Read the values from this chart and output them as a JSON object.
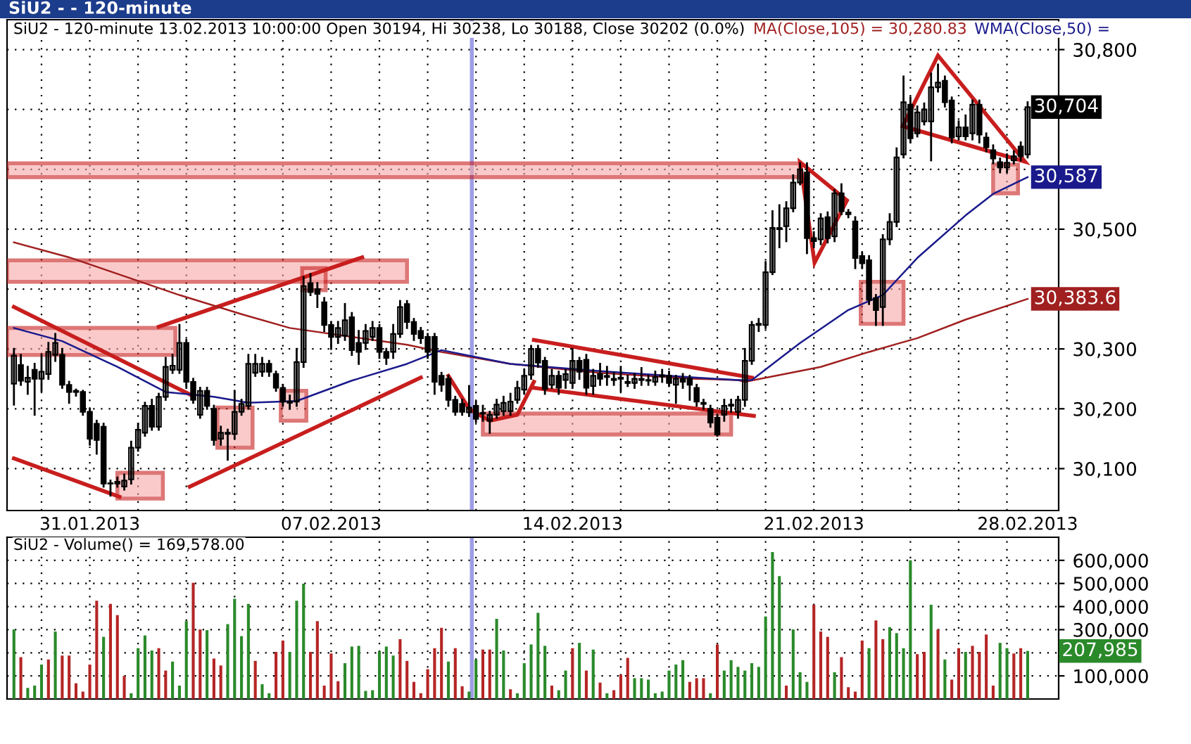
{
  "chart_data": [
    {
      "type": "candlestick",
      "subtitle": "SiU2 - - 120-minute",
      "title": "SiU2 - 120-minute 13.02.2013 10:00:00 Open 30194, Hi 30238, Lo 30188, Close 30202 (0.0%)",
      "color": "#000000",
      "categories": [
        null,
        null,
        null,
        null,
        null,
        null,
        null,
        null,
        null,
        null,
        null,
        "31.01.2013",
        null,
        null,
        null,
        null,
        null,
        null,
        null,
        null,
        null,
        null,
        null,
        null,
        null,
        null,
        null,
        null,
        null,
        null,
        null,
        null,
        null,
        null,
        null,
        null,
        null,
        null,
        null,
        null,
        null,
        null,
        null,
        null,
        null,
        null,
        "07.02.2013",
        null,
        null,
        null,
        null,
        null,
        null,
        null,
        null,
        null,
        null,
        null,
        null,
        null,
        null,
        null,
        null,
        null,
        null,
        null,
        null,
        null,
        null,
        null,
        null,
        null,
        null,
        null,
        null,
        null,
        null,
        null,
        null,
        null,
        null,
        "14.02.2013",
        null,
        null,
        null,
        null,
        null,
        null,
        null,
        null,
        null,
        null,
        null,
        null,
        null,
        null,
        null,
        null,
        null,
        null,
        null,
        null,
        null,
        null,
        null,
        null,
        null,
        null,
        null,
        null,
        null,
        null,
        null,
        null,
        null,
        null,
        "21.02.2013",
        null,
        null,
        null,
        null,
        null,
        null,
        null,
        null,
        null,
        null,
        null,
        null,
        null,
        null,
        null,
        null,
        null,
        null,
        null,
        null,
        null,
        null,
        null,
        null,
        null,
        null,
        null,
        null,
        null,
        null,
        "28.02.2013"
      ],
      "ohlc": [
        [
          30242,
          30300,
          30207,
          30289
        ],
        [
          30273,
          30290,
          30240,
          30247
        ],
        [
          30245,
          30270,
          30225,
          30252
        ],
        [
          30265,
          30275,
          30190,
          30250
        ],
        [
          30250,
          30290,
          30230,
          30262
        ],
        [
          30258,
          30310,
          30250,
          30295
        ],
        [
          30290,
          30325,
          30280,
          30310
        ],
        [
          30290,
          30300,
          30235,
          30240
        ],
        [
          30240,
          30245,
          30210,
          30228
        ],
        [
          30230,
          30232,
          30222,
          30228
        ],
        [
          30228,
          30230,
          30190,
          30195
        ],
        [
          30195,
          30200,
          30140,
          30150
        ],
        [
          30175,
          30180,
          30125,
          30148
        ],
        [
          30170,
          30175,
          30070,
          30075
        ],
        [
          30075,
          30080,
          30055,
          30075
        ],
        [
          30075,
          30085,
          30070,
          30078
        ],
        [
          30070,
          30090,
          30065,
          30080
        ],
        [
          30082,
          30145,
          30075,
          30135
        ],
        [
          30135,
          30175,
          30130,
          30165
        ],
        [
          30160,
          30210,
          30155,
          30205
        ],
        [
          30205,
          30215,
          30165,
          30170
        ],
        [
          30170,
          30225,
          30165,
          30220
        ],
        [
          30220,
          30285,
          30215,
          30270
        ],
        [
          30265,
          30290,
          30260,
          30272
        ],
        [
          30265,
          30340,
          30260,
          30310
        ],
        [
          30310,
          30315,
          30235,
          30245
        ],
        [
          30245,
          30250,
          30210,
          30215
        ],
        [
          30190,
          30235,
          30185,
          30230
        ],
        [
          30230,
          30235,
          30200,
          30205
        ],
        [
          30200,
          30205,
          30140,
          30148
        ],
        [
          30150,
          30170,
          30140,
          30160
        ],
        [
          30158,
          30165,
          30115,
          30160
        ],
        [
          30158,
          30230,
          30150,
          30195
        ],
        [
          30195,
          30215,
          30190,
          30208
        ],
        [
          30205,
          30290,
          30200,
          30275
        ],
        [
          30260,
          30290,
          30255,
          30275
        ],
        [
          30262,
          30285,
          30255,
          30275
        ],
        [
          30275,
          30280,
          30255,
          30262
        ],
        [
          30258,
          30262,
          30230,
          30235
        ],
        [
          30235,
          30240,
          30205,
          30212
        ],
        [
          30210,
          30222,
          30200,
          30212
        ],
        [
          30212,
          30300,
          30205,
          30278
        ],
        [
          30278,
          30420,
          30270,
          30405
        ],
        [
          30410,
          30425,
          30390,
          30395
        ],
        [
          30400,
          30410,
          30370,
          30392
        ],
        [
          30378,
          30385,
          30330,
          30340
        ],
        [
          30340,
          30345,
          30300,
          30320
        ],
        [
          30320,
          30345,
          30310,
          30335
        ],
        [
          30322,
          30375,
          30315,
          30348
        ],
        [
          30353,
          30360,
          30290,
          30298
        ],
        [
          30310,
          30330,
          30275,
          30295
        ],
        [
          30310,
          30340,
          30300,
          30330
        ],
        [
          30320,
          30345,
          30315,
          30335
        ],
        [
          30335,
          30340,
          30285,
          30295
        ],
        [
          30295,
          30300,
          30275,
          30285
        ],
        [
          30295,
          30340,
          30285,
          30325
        ],
        [
          30325,
          30380,
          30320,
          30370
        ],
        [
          30375,
          30380,
          30335,
          30345
        ],
        [
          30345,
          30350,
          30315,
          30325
        ],
        [
          30330,
          30335,
          30310,
          30318
        ],
        [
          30320,
          30325,
          30285,
          30295
        ],
        [
          30320,
          30325,
          30225,
          30245
        ],
        [
          30255,
          30260,
          30230,
          30240
        ],
        [
          30250,
          30255,
          30205,
          30215
        ],
        [
          30215,
          30220,
          30190,
          30195
        ],
        [
          30208,
          30215,
          30190,
          30195
        ],
        [
          30194,
          30238,
          30188,
          30202
        ],
        [
          30205,
          30212,
          30178,
          30183
        ],
        [
          30192,
          30205,
          30180,
          30193
        ],
        [
          30180,
          30195,
          30160,
          30190
        ],
        [
          30190,
          30215,
          30185,
          30207
        ],
        [
          30196,
          30220,
          30190,
          30210
        ],
        [
          30196,
          30225,
          30190,
          30212
        ],
        [
          30215,
          30245,
          30210,
          30235
        ],
        [
          30232,
          30265,
          30225,
          30255
        ],
        [
          30257,
          30305,
          30250,
          30300
        ],
        [
          30300,
          30305,
          30270,
          30277
        ],
        [
          30280,
          30285,
          30225,
          30233
        ],
        [
          30240,
          30265,
          30235,
          30255
        ],
        [
          30255,
          30262,
          30225,
          30235
        ],
        [
          30248,
          30265,
          30235,
          30258
        ],
        [
          30243,
          30300,
          30235,
          30280
        ],
        [
          30280,
          30285,
          30250,
          30262
        ],
        [
          30282,
          30290,
          30225,
          30235
        ],
        [
          30238,
          30265,
          30225,
          30255
        ],
        [
          30258,
          30275,
          30240,
          30250
        ],
        [
          30255,
          30270,
          30240,
          30253
        ],
        [
          30250,
          30260,
          30240,
          30248
        ],
        [
          30250,
          30270,
          30230,
          30252
        ],
        [
          30245,
          30255,
          30238,
          30243
        ],
        [
          30243,
          30258,
          30235,
          30250
        ],
        [
          30248,
          30268,
          30240,
          30250
        ],
        [
          30248,
          30255,
          30240,
          30247
        ],
        [
          30245,
          30262,
          30240,
          30253
        ],
        [
          30254,
          30265,
          30245,
          30256
        ],
        [
          30255,
          30262,
          30238,
          30243
        ],
        [
          30240,
          30255,
          30210,
          30250
        ],
        [
          30250,
          30258,
          30235,
          30245
        ],
        [
          30250,
          30255,
          30215,
          30240
        ],
        [
          30235,
          30240,
          30205,
          30212
        ],
        [
          30210,
          30215,
          30200,
          30208
        ],
        [
          30200,
          30205,
          30170,
          30177
        ],
        [
          30185,
          30190,
          30155,
          30157
        ],
        [
          30190,
          30215,
          30180,
          30205
        ],
        [
          30205,
          30215,
          30195,
          30207
        ],
        [
          30195,
          30220,
          30185,
          30215
        ],
        [
          30215,
          30300,
          30205,
          30280
        ],
        [
          30280,
          30345,
          30275,
          30340
        ],
        [
          30340,
          30350,
          30330,
          30342
        ],
        [
          30340,
          30445,
          30335,
          30428
        ],
        [
          30428,
          30530,
          30425,
          30502
        ],
        [
          30500,
          30540,
          30470,
          30502
        ],
        [
          30505,
          30545,
          30480,
          30535
        ],
        [
          30535,
          30590,
          30530,
          30578
        ],
        [
          30578,
          30610,
          30575,
          30600
        ],
        [
          30595,
          30610,
          30460,
          30485
        ],
        [
          30485,
          30495,
          30470,
          30480
        ],
        [
          30483,
          30525,
          30475,
          30518
        ],
        [
          30520,
          30528,
          30478,
          30485
        ],
        [
          30488,
          30565,
          30480,
          30560
        ],
        [
          30560,
          30575,
          30525,
          30530
        ],
        [
          30528,
          30532,
          30520,
          30525
        ],
        [
          30513,
          30520,
          30435,
          30452
        ],
        [
          30455,
          30460,
          30435,
          30443
        ],
        [
          30448,
          30455,
          30375,
          30382
        ],
        [
          30385,
          30390,
          30340,
          30365
        ],
        [
          30370,
          30490,
          30340,
          30483
        ],
        [
          30483,
          30525,
          30475,
          30512
        ],
        [
          30512,
          30635,
          30505,
          30620
        ],
        [
          30625,
          30755,
          30620,
          30712
        ],
        [
          30708,
          30720,
          30645,
          30652
        ],
        [
          30660,
          30705,
          30655,
          30695
        ],
        [
          30680,
          30710,
          30675,
          30700
        ],
        [
          30680,
          30760,
          30615,
          30737
        ],
        [
          30737,
          30775,
          30730,
          30745
        ],
        [
          30748,
          30755,
          30705,
          30712
        ],
        [
          30715,
          30720,
          30645,
          30653
        ],
        [
          30655,
          30680,
          30650,
          30670
        ],
        [
          30670,
          30690,
          30650,
          30655
        ],
        [
          30660,
          30715,
          30650,
          30708
        ],
        [
          30708,
          30715,
          30645,
          30658
        ],
        [
          30653,
          30660,
          30630,
          30637
        ],
        [
          30632,
          30640,
          30610,
          30618
        ],
        [
          30612,
          30618,
          30595,
          30603
        ],
        [
          30603,
          30625,
          30595,
          30611
        ],
        [
          30615,
          30630,
          30610,
          30622
        ],
        [
          30638,
          30645,
          30615,
          30622
        ],
        [
          30625,
          30712,
          30620,
          30704
        ]
      ],
      "value_labels": [
        null,
        null,
        null,
        null,
        null,
        null,
        null,
        null,
        null,
        null,
        null,
        null,
        null,
        null,
        null,
        null,
        null,
        null,
        null,
        null,
        null,
        null,
        null,
        null,
        null,
        null,
        null,
        null,
        null,
        null,
        null,
        null,
        null,
        null,
        null,
        null,
        null,
        null,
        null,
        null,
        null,
        null,
        null,
        null,
        null,
        null,
        null,
        null,
        null,
        null,
        null,
        null,
        null,
        null,
        null,
        null,
        null,
        null,
        null,
        null,
        null,
        null,
        null,
        null,
        null,
        null,
        null,
        null,
        null,
        null,
        null,
        null,
        null,
        null,
        null,
        null,
        null,
        null,
        null,
        null,
        null,
        null,
        null,
        null,
        null,
        null,
        null,
        null,
        null,
        null,
        null,
        null,
        null,
        null,
        null,
        null,
        null,
        null,
        null,
        null,
        null,
        null,
        null,
        null,
        null,
        null,
        null,
        null,
        null,
        null,
        null,
        null,
        null,
        null,
        null,
        null,
        null,
        null,
        null,
        null,
        null,
        null,
        null,
        null,
        null,
        null,
        null,
        null,
        null,
        null,
        null,
        null,
        null,
        null,
        null,
        null,
        null,
        null,
        null,
        null,
        null,
        null,
        null,
        null,
        null,
        null,
        null,
        "30,704"
      ],
      "series": [
        {
          "type": "line",
          "name": "MA(Close,105) = 30,280.83",
          "color": "#a02020",
          "values": [
            30478,
            null,
            null,
            null,
            null,
            null,
            null,
            null,
            30453,
            null,
            null,
            null,
            null,
            null,
            null,
            null,
            null,
            null,
            null,
            null,
            null,
            null,
            null,
            null,
            30390,
            null,
            null,
            null,
            null,
            null,
            null,
            null,
            null,
            30358,
            null,
            null,
            null,
            null,
            null,
            null,
            30335,
            null,
            null,
            null,
            null,
            null,
            null,
            null,
            null,
            null,
            null,
            null,
            null,
            null,
            null,
            null,
            null,
            30307,
            null,
            null,
            null,
            null,
            30295,
            null,
            null,
            null,
            null,
            null,
            null,
            null,
            null,
            null,
            30275,
            null,
            null,
            null,
            null,
            null,
            null,
            null,
            null,
            null,
            null,
            null,
            null,
            30260,
            null,
            null,
            null,
            null,
            null,
            null,
            null,
            null,
            null,
            null,
            null,
            null,
            null,
            30250,
            null,
            null,
            null,
            null,
            null,
            30248,
            30245,
            null,
            null,
            null,
            null,
            null,
            null,
            null,
            null,
            null,
            null,
            30270,
            null,
            null,
            null,
            null,
            null,
            null,
            30295,
            null,
            null,
            null,
            null,
            null,
            null,
            30318,
            null,
            null,
            null,
            null,
            null,
            null,
            30349,
            null,
            null,
            null,
            null,
            null,
            null,
            null,
            null,
            30383.6
          ],
          "value_labels": [
            null,
            null,
            null,
            null,
            null,
            null,
            null,
            null,
            null,
            null,
            null,
            null,
            null,
            null,
            null,
            null,
            null,
            null,
            null,
            null,
            null,
            null,
            null,
            null,
            null,
            null,
            null,
            null,
            null,
            null,
            null,
            null,
            null,
            null,
            null,
            null,
            null,
            null,
            null,
            null,
            null,
            null,
            null,
            null,
            null,
            null,
            null,
            null,
            null,
            null,
            null,
            null,
            null,
            null,
            null,
            null,
            null,
            null,
            null,
            null,
            null,
            null,
            null,
            null,
            null,
            null,
            null,
            null,
            null,
            null,
            null,
            null,
            null,
            null,
            null,
            null,
            null,
            null,
            null,
            null,
            null,
            null,
            null,
            null,
            null,
            null,
            null,
            null,
            null,
            null,
            null,
            null,
            null,
            null,
            null,
            null,
            null,
            null,
            null,
            null,
            null,
            null,
            null,
            null,
            null,
            null,
            null,
            null,
            null,
            null,
            null,
            null,
            null,
            null,
            null,
            null,
            null,
            null,
            null,
            null,
            null,
            null,
            null,
            null,
            null,
            null,
            null,
            null,
            null,
            null,
            null,
            null,
            null,
            null,
            null,
            null,
            null,
            null,
            null,
            null,
            null,
            null,
            null,
            null,
            null,
            null,
            null,
            "30,383.6"
          ]
        },
        {
          "type": "line",
          "name": "WMA(Close,50) =",
          "color": "#1a1a8c",
          "values": [
            30335,
            null,
            null,
            null,
            null,
            null,
            null,
            30313,
            null,
            null,
            null,
            null,
            null,
            null,
            null,
            30270,
            null,
            null,
            null,
            null,
            null,
            null,
            30228,
            null,
            null,
            null,
            null,
            null,
            null,
            30220,
            null,
            null,
            null,
            null,
            30210,
            null,
            null,
            null,
            null,
            null,
            null,
            30213,
            null,
            null,
            null,
            null,
            null,
            null,
            null,
            30247,
            null,
            null,
            null,
            null,
            null,
            null,
            null,
            30275,
            null,
            null,
            null,
            null,
            30298,
            null,
            null,
            null,
            null,
            null,
            null,
            null,
            null,
            null,
            30275,
            null,
            null,
            null,
            null,
            null,
            null,
            null,
            null,
            null,
            null,
            null,
            null,
            30263,
            null,
            null,
            null,
            null,
            null,
            null,
            null,
            null,
            null,
            null,
            null,
            null,
            null,
            30252,
            null,
            null,
            null,
            null,
            null,
            30248,
            null,
            30248,
            null,
            null,
            null,
            null,
            null,
            null,
            30310,
            null,
            null,
            null,
            null,
            null,
            null,
            30365,
            null,
            null,
            null,
            null,
            30390,
            null,
            null,
            null,
            null,
            30452,
            null,
            null,
            null,
            null,
            null,
            null,
            30523,
            null,
            null,
            null,
            30559,
            null,
            null,
            null,
            null,
            30587
          ],
          "value_labels": [
            null,
            null,
            null,
            null,
            null,
            null,
            null,
            null,
            null,
            null,
            null,
            null,
            null,
            null,
            null,
            null,
            null,
            null,
            null,
            null,
            null,
            null,
            null,
            null,
            null,
            null,
            null,
            null,
            null,
            null,
            null,
            null,
            null,
            null,
            null,
            null,
            null,
            null,
            null,
            null,
            null,
            null,
            null,
            null,
            null,
            null,
            null,
            null,
            null,
            null,
            null,
            null,
            null,
            null,
            null,
            null,
            null,
            null,
            null,
            null,
            null,
            null,
            null,
            null,
            null,
            null,
            null,
            null,
            null,
            null,
            null,
            null,
            null,
            null,
            null,
            null,
            null,
            null,
            null,
            null,
            null,
            null,
            null,
            null,
            null,
            null,
            null,
            null,
            null,
            null,
            null,
            null,
            null,
            null,
            null,
            null,
            null,
            null,
            null,
            null,
            null,
            null,
            null,
            null,
            null,
            null,
            null,
            null,
            null,
            null,
            null,
            null,
            null,
            null,
            null,
            null,
            null,
            null,
            null,
            null,
            null,
            null,
            null,
            null,
            null,
            null,
            null,
            null,
            null,
            null,
            null,
            null,
            null,
            null,
            null,
            null,
            null,
            null,
            null,
            null,
            null,
            null,
            null,
            null,
            null,
            null,
            null,
            "30,587"
          ]
        }
      ],
      "ylim": [
        30030,
        30850
      ],
      "yticks": [
        {
          "value": 30100,
          "label": "30,100"
        },
        {
          "value": 30200,
          "label": "30,200"
        },
        {
          "value": 30300,
          "label": "30,300"
        },
        {
          "value": 30400,
          "label": null
        },
        {
          "value": 30500,
          "label": "30,500"
        },
        {
          "value": 30600,
          "label": null
        },
        {
          "value": 30700,
          "label": null
        },
        {
          "value": 30800,
          "label": "30,800"
        }
      ],
      "grid": true
    },
    {
      "type": "bar",
      "title": "SiU2 - Volume() = 169,578.00",
      "categories": [
        null,
        null,
        null,
        null,
        null,
        null,
        null,
        null,
        null,
        null,
        null,
        null,
        null,
        null,
        null,
        null,
        null,
        null,
        null,
        null,
        null,
        null,
        null,
        null,
        null,
        null,
        null,
        null,
        null,
        null,
        null,
        null,
        null,
        null,
        null,
        null,
        null,
        null,
        null,
        null,
        null,
        null,
        null,
        null,
        null,
        null,
        null,
        null,
        null,
        null,
        null,
        null,
        null,
        null,
        null,
        null,
        null,
        null,
        null,
        null,
        null,
        null,
        null,
        null,
        null,
        null,
        null,
        null,
        null,
        null,
        null,
        null,
        null,
        null,
        null,
        null,
        null,
        null,
        null,
        null,
        null,
        null,
        null,
        null,
        null,
        null,
        null,
        null,
        null,
        null,
        null,
        null,
        null,
        null,
        null,
        null,
        null,
        null,
        null,
        null,
        null,
        null,
        null,
        null,
        null,
        null,
        null,
        null,
        null,
        null,
        null,
        null,
        null,
        null,
        null,
        null,
        null,
        null,
        null,
        null,
        null,
        null,
        null,
        null,
        null,
        null,
        null,
        null,
        null,
        null,
        null,
        null,
        null,
        null,
        null,
        null,
        null,
        null,
        null,
        null,
        null,
        null,
        null,
        null,
        null,
        null,
        null,
        null
      ],
      "values": [
        301000,
        181000,
        48000,
        58000,
        149000,
        171000,
        292000,
        188000,
        188000,
        68000,
        32000,
        149000,
        425000,
        269000,
        412000,
        363000,
        100000,
        25000,
        220000,
        275000,
        210000,
        220000,
        123000,
        162000,
        58000,
        337000,
        503000,
        301000,
        298000,
        175000,
        145000,
        324000,
        434000,
        272000,
        412000,
        165000,
        64000,
        25000,
        204000,
        253000,
        204000,
        425000,
        499000,
        204000,
        337000,
        58000,
        197000,
        77000,
        155000,
        227000,
        230000,
        35000,
        38000,
        207000,
        227000,
        188000,
        259000,
        165000,
        74000,
        25000,
        129000,
        220000,
        308000,
        162000,
        220000,
        55000,
        32000,
        171000,
        214000,
        214000,
        347000,
        210000,
        42000,
        25000,
        155000,
        236000,
        373000,
        230000,
        58000,
        38000,
        123000,
        220000,
        243000,
        123000,
        214000,
        71000,
        25000,
        38000,
        106000,
        178000,
        90000,
        90000,
        84000,
        25000,
        32000,
        123000,
        149000,
        168000,
        74000,
        90000,
        90000,
        25000,
        236000,
        123000,
        168000,
        139000,
        123000,
        155000,
        139000,
        357000,
        636000,
        532000,
        58000,
        301000,
        116000,
        74000,
        408000,
        292000,
        269000,
        116000,
        181000,
        51000,
        32000,
        253000,
        220000,
        340000,
        259000,
        311000,
        285000,
        220000,
        600000,
        194000,
        204000,
        408000,
        301000,
        171000,
        84000,
        220000,
        204000,
        230000,
        204000,
        279000,
        58000,
        243000,
        220000,
        197000,
        220000,
        207985
      ],
      "value_labels": [
        null,
        null,
        null,
        null,
        null,
        null,
        null,
        null,
        null,
        null,
        null,
        null,
        null,
        null,
        null,
        null,
        null,
        null,
        null,
        null,
        null,
        null,
        null,
        null,
        null,
        null,
        null,
        null,
        null,
        null,
        null,
        null,
        null,
        null,
        null,
        null,
        null,
        null,
        null,
        null,
        null,
        null,
        null,
        null,
        null,
        null,
        null,
        null,
        null,
        null,
        null,
        null,
        null,
        null,
        null,
        null,
        null,
        null,
        null,
        null,
        null,
        null,
        null,
        null,
        null,
        null,
        null,
        null,
        null,
        null,
        null,
        null,
        null,
        null,
        null,
        null,
        null,
        null,
        null,
        null,
        null,
        null,
        null,
        null,
        null,
        null,
        null,
        null,
        null,
        null,
        null,
        null,
        null,
        null,
        null,
        null,
        null,
        null,
        null,
        null,
        null,
        null,
        null,
        null,
        null,
        null,
        null,
        null,
        null,
        null,
        null,
        null,
        null,
        null,
        null,
        null,
        null,
        null,
        null,
        null,
        null,
        null,
        null,
        null,
        null,
        null,
        null,
        null,
        null,
        null,
        null,
        null,
        null,
        null,
        null,
        null,
        null,
        null,
        null,
        null,
        null,
        null,
        null,
        null,
        null,
        null,
        null,
        null
      ],
      "annotations": [
        "207,985"
      ],
      "colors": [
        "#2a8a2a",
        "#b52525",
        "#2a8a2a",
        "#2a8a2a",
        "#2a8a2a",
        "#b52525",
        "#2a8a2a",
        "#b52525",
        "#b52525",
        "#b52525",
        "#b52525",
        "#b52525",
        "#b52525",
        "#2a8a2a",
        "#b52525",
        "#b52525",
        "#b52525",
        "#2a8a2a",
        "#2a8a2a",
        "#2a8a2a",
        "#2a8a2a",
        "#b52525",
        "#b52525",
        "#2a8a2a",
        "#2a8a2a",
        "#2a8a2a",
        "#b52525",
        "#b52525",
        "#2a8a2a",
        "#b52525",
        "#b52525",
        "#2a8a2a",
        "#2a8a2a",
        "#2a8a2a",
        "#2a8a2a",
        "#b52525",
        "#2a8a2a",
        "#2a8a2a",
        "#b52525",
        "#b52525",
        "#2a8a2a",
        "#2a8a2a",
        "#2a8a2a",
        "#b52525",
        "#b52525",
        "#b52525",
        "#b52525",
        "#b52525",
        "#2a8a2a",
        "#2a8a2a",
        "#2a8a2a",
        "#2a8a2a",
        "#2a8a2a",
        "#2a8a2a",
        "#2a8a2a",
        "#2a8a2a",
        "#b52525",
        "#b52525",
        "#b52525",
        "#b52525",
        "#b52525",
        "#b52525",
        "#b52525",
        "#2a8a2a",
        "#b52525",
        "#b52525",
        "#2a8a2a",
        "#2a8a2a",
        "#b52525",
        "#b52525",
        "#2a8a2a",
        "#2a8a2a",
        "#b52525",
        "#2a8a2a",
        "#2a8a2a",
        "#2a8a2a",
        "#2a8a2a",
        "#2a8a2a",
        "#b52525",
        "#2a8a2a",
        "#2a8a2a",
        "#b52525",
        "#2a8a2a",
        "#b52525",
        "#2a8a2a",
        "#b52525",
        "#2a8a2a",
        "#b52525",
        "#b52525",
        "#b52525",
        "#2a8a2a",
        "#2a8a2a",
        "#2a8a2a",
        "#2a8a2a",
        "#2a8a2a",
        "#2a8a2a",
        "#2a8a2a",
        "#2a8a2a",
        "#b52525",
        "#b52525",
        "#b52525",
        "#2a8a2a",
        "#b52525",
        "#2a8a2a",
        "#2a8a2a",
        "#2a8a2a",
        "#2a8a2a",
        "#2a8a2a",
        "#2a8a2a",
        "#2a8a2a",
        "#2a8a2a",
        "#2a8a2a",
        "#b52525",
        "#2a8a2a",
        "#2a8a2a",
        "#2a8a2a",
        "#b52525",
        "#b52525",
        "#b52525",
        "#2a8a2a",
        "#b52525",
        "#b52525",
        "#b52525",
        "#b52525",
        "#2a8a2a",
        "#b52525",
        "#b52525",
        "#2a8a2a",
        "#2a8a2a",
        "#2a8a2a",
        "#2a8a2a",
        "#b52525",
        "#b52525",
        "#2a8a2a",
        "#b52525",
        "#2a8a2a",
        "#b52525",
        "#b52525",
        "#2a8a2a",
        "#b52525",
        "#b52525",
        "#b52525",
        "#b52525",
        "#2a8a2a",
        "#2a8a2a",
        "#b52525",
        "#b52525",
        "#2a8a2a"
      ],
      "ylim": [
        0,
        700000
      ],
      "yticks": [
        {
          "value": 100000,
          "label": "100,000"
        },
        {
          "value": 200000,
          "label": null
        },
        {
          "value": 300000,
          "label": "300,000"
        },
        {
          "value": 400000,
          "label": "400,000"
        },
        {
          "value": 500000,
          "label": "500,000"
        },
        {
          "value": 600000,
          "label": "600,000"
        }
      ],
      "tick_labels": "y",
      "grid": true
    }
  ]
}
